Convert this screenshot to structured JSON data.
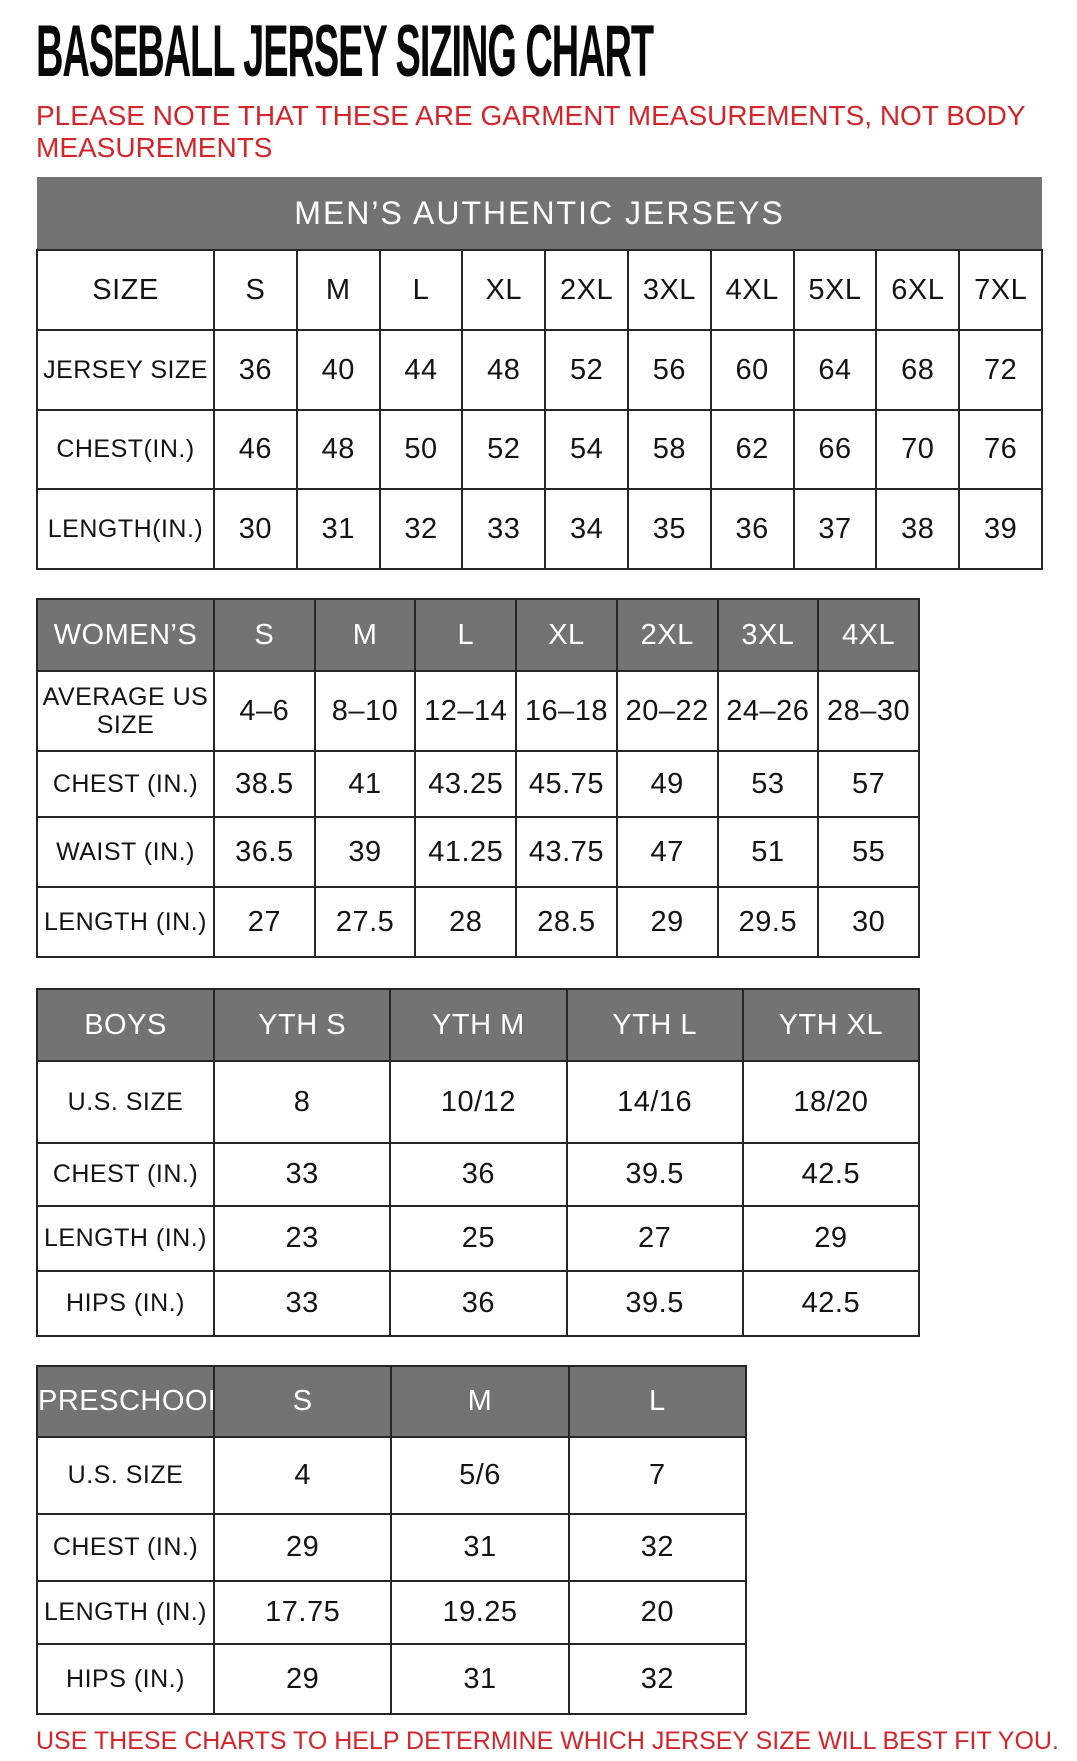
{
  "page": {
    "title": "BASEBALL JERSEY SIZING CHART",
    "note": "PLEASE NOTE THAT THESE ARE GARMENT MEASUREMENTS, NOT BODY MEASUREMENTS",
    "footer": "USE THESE CHARTS TO HELP DETERMINE WHICH JERSEY SIZE WILL BEST FIT YOU.",
    "colors": {
      "accent_red": "#d2262c",
      "header_gray": "#737373",
      "header_text": "#ffffff",
      "border": "#262626",
      "body_text": "#141414"
    }
  },
  "tables": [
    {
      "id": "mens",
      "banner": "MEN’S AUTHENTIC JERSEYS",
      "header_row": [
        "SIZE",
        "S",
        "M",
        "L",
        "XL",
        "2XL",
        "3XL",
        "4XL",
        "5XL",
        "6XL",
        "7XL"
      ],
      "rows": [
        [
          "JERSEY SIZE",
          "36",
          "40",
          "44",
          "48",
          "52",
          "56",
          "60",
          "64",
          "68",
          "72"
        ],
        [
          "CHEST(IN.)",
          "46",
          "48",
          "50",
          "52",
          "54",
          "58",
          "62",
          "66",
          "70",
          "76"
        ],
        [
          "LENGTH(IN.)",
          "30",
          "31",
          "32",
          "33",
          "34",
          "35",
          "36",
          "37",
          "38",
          "39"
        ]
      ]
    },
    {
      "id": "womens",
      "header_row": [
        "WOMEN’S",
        "S",
        "M",
        "L",
        "XL",
        "2XL",
        "3XL",
        "4XL"
      ],
      "rows": [
        [
          "AVERAGE US SIZE",
          "4–6",
          "8–10",
          "12–14",
          "16–18",
          "20–22",
          "24–26",
          "28–30"
        ],
        [
          "CHEST (IN.)",
          "38.5",
          "41",
          "43.25",
          "45.75",
          "49",
          "53",
          "57"
        ],
        [
          "WAIST (IN.)",
          "36.5",
          "39",
          "41.25",
          "43.75",
          "47",
          "51",
          "55"
        ],
        [
          "LENGTH (IN.)",
          "27",
          "27.5",
          "28",
          "28.5",
          "29",
          "29.5",
          "30"
        ]
      ]
    },
    {
      "id": "boys",
      "header_row": [
        "BOYS",
        "YTH S",
        "YTH M",
        "YTH L",
        "YTH XL"
      ],
      "rows": [
        [
          "U.S. SIZE",
          "8",
          "10/12",
          "14/16",
          "18/20"
        ],
        [
          "CHEST (IN.)",
          "33",
          "36",
          "39.5",
          "42.5"
        ],
        [
          "LENGTH (IN.)",
          "23",
          "25",
          "27",
          "29"
        ],
        [
          "HIPS (IN.)",
          "33",
          "36",
          "39.5",
          "42.5"
        ]
      ]
    },
    {
      "id": "preschool",
      "header_row": [
        "PRESCHOOL",
        "S",
        "M",
        "L"
      ],
      "rows": [
        [
          "U.S. SIZE",
          "4",
          "5/6",
          "7"
        ],
        [
          "CHEST (IN.)",
          "29",
          "31",
          "32"
        ],
        [
          "LENGTH (IN.)",
          "17.75",
          "19.25",
          "20"
        ],
        [
          "HIPS (IN.)",
          "29",
          "31",
          "32"
        ]
      ]
    }
  ]
}
